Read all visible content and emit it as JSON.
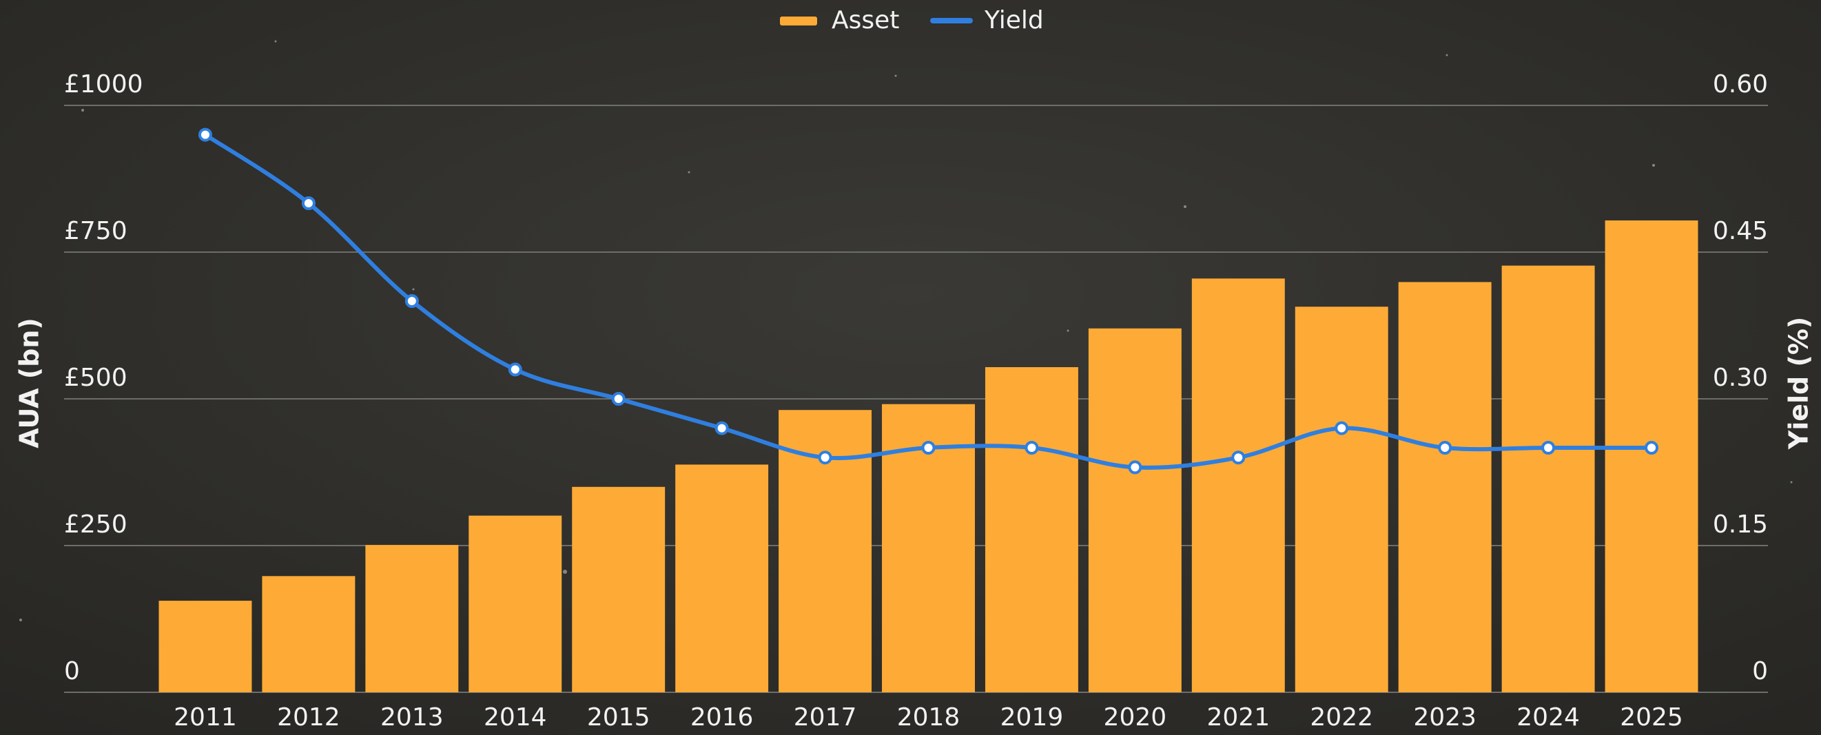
{
  "chart_data": {
    "type": "bar-line",
    "categories": [
      "2011",
      "2012",
      "2013",
      "2014",
      "2015",
      "2016",
      "2017",
      "2018",
      "2019",
      "2020",
      "2021",
      "2022",
      "2023",
      "2024",
      "2025"
    ],
    "series": [
      {
        "name": "Asset",
        "color": "#fdab36",
        "type": "bar",
        "values": [
          156,
          198,
          251,
          301,
          350,
          388,
          481,
          491,
          554,
          620,
          705,
          657,
          699,
          727,
          804
        ]
      },
      {
        "name": "Yield",
        "color": "#2f7fe0",
        "type": "line",
        "axis": "y2",
        "values": [
          0.57,
          0.5,
          0.4,
          0.33,
          0.3,
          0.27,
          0.24,
          0.25,
          0.25,
          0.23,
          0.24,
          0.27,
          0.25,
          0.25,
          0.25
        ]
      }
    ],
    "y_label": "AUA (bn)",
    "y2_label": "Yield (%)",
    "ylim": [
      0,
      1000
    ],
    "yticks": [
      0,
      {
        "value": 250,
        "label": "£250"
      },
      {
        "value": 500,
        "label": "£500"
      },
      {
        "value": 750,
        "label": "£750"
      },
      {
        "value": 1000,
        "label": "£1000"
      }
    ],
    "y2lim": [
      0,
      0.6
    ],
    "y2ticks": [
      0,
      {
        "value": 0.15,
        "label": "0.15"
      },
      {
        "value": 0.3,
        "label": "0.30"
      },
      {
        "value": 0.45,
        "label": "0.45"
      },
      {
        "value": 0.6,
        "label": "0.60"
      }
    ],
    "grid": true,
    "legend": "top"
  }
}
